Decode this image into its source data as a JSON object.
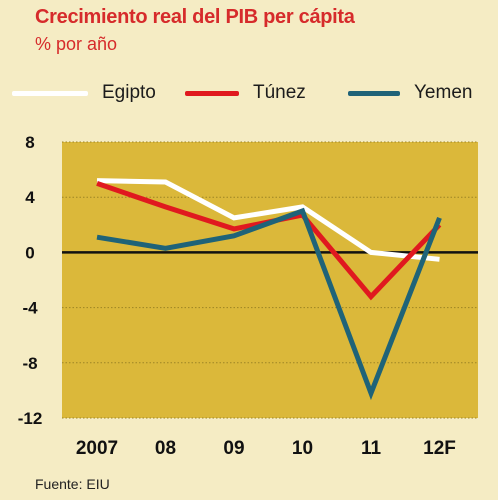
{
  "header": {
    "title": "Crecimiento real del PIB per cápita",
    "subtitle": "% por año"
  },
  "source": "Fuente: EIU",
  "chart_data": {
    "type": "line",
    "title": "Crecimiento real del PIB per cápita",
    "subtitle": "% por año",
    "categories": [
      "2007",
      "08",
      "09",
      "10",
      "11",
      "12F"
    ],
    "series": [
      {
        "name": "Egipto",
        "color": "#ffffff",
        "values": [
          5.2,
          5.1,
          2.5,
          3.3,
          0.0,
          -0.5
        ]
      },
      {
        "name": "Túnez",
        "color": "#e0191f",
        "values": [
          5.0,
          3.3,
          1.7,
          2.7,
          -3.2,
          2.0
        ]
      },
      {
        "name": "Yemen",
        "color": "#1f6378",
        "values": [
          1.1,
          0.3,
          1.2,
          3.0,
          -10.2,
          2.5
        ]
      }
    ],
    "yticks": [
      8,
      4,
      0,
      -4,
      -8,
      -12
    ],
    "ylim": [
      -12,
      8
    ],
    "xlabel": "",
    "ylabel": "",
    "legend_position": "top",
    "grid": true,
    "plot_background": "#dbb83a",
    "page_background": "#f5ecc4"
  }
}
